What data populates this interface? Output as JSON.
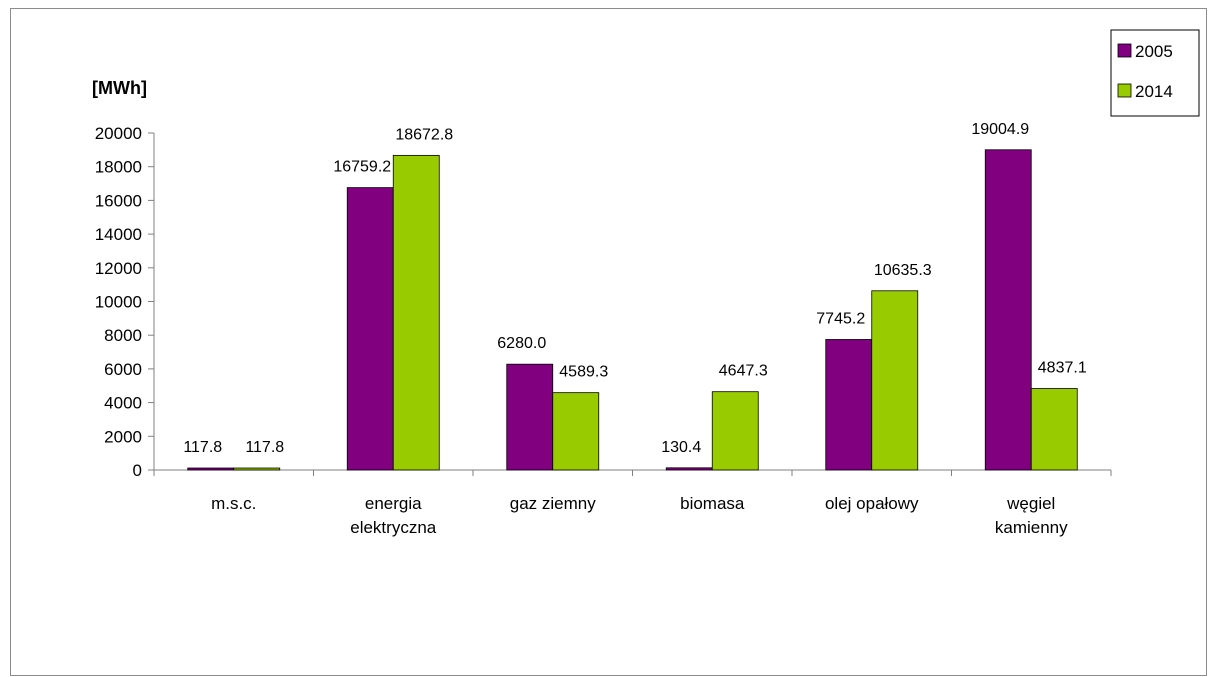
{
  "chart_data": {
    "type": "bar",
    "unit_label": "[MWh]",
    "categories": [
      [
        "m.s.c."
      ],
      [
        "energia",
        "elektryczna"
      ],
      [
        "gaz ziemny"
      ],
      [
        "biomasa"
      ],
      [
        "olej opałowy"
      ],
      [
        "węgiel",
        "kamienny"
      ]
    ],
    "series": [
      {
        "name": "2005",
        "color": "#800080",
        "values": [
          117.8,
          16759.2,
          6280.0,
          130.4,
          7745.2,
          19004.9
        ],
        "labels": [
          "117.8",
          "16759.2",
          "6280.0",
          "130.4",
          "7745.2",
          "19004.9"
        ]
      },
      {
        "name": "2014",
        "color": "#99cc00",
        "values": [
          117.8,
          18672.8,
          4589.3,
          4647.3,
          10635.3,
          4837.1
        ],
        "labels": [
          "117.8",
          "18672.8",
          "4589.3",
          "4647.3",
          "10635.3",
          "4837.1"
        ]
      }
    ],
    "ylim": [
      0,
      20000
    ],
    "yticks": [
      0,
      2000,
      4000,
      6000,
      8000,
      10000,
      12000,
      14000,
      16000,
      18000,
      20000
    ],
    "legend_position": "top-right",
    "grid": false
  }
}
